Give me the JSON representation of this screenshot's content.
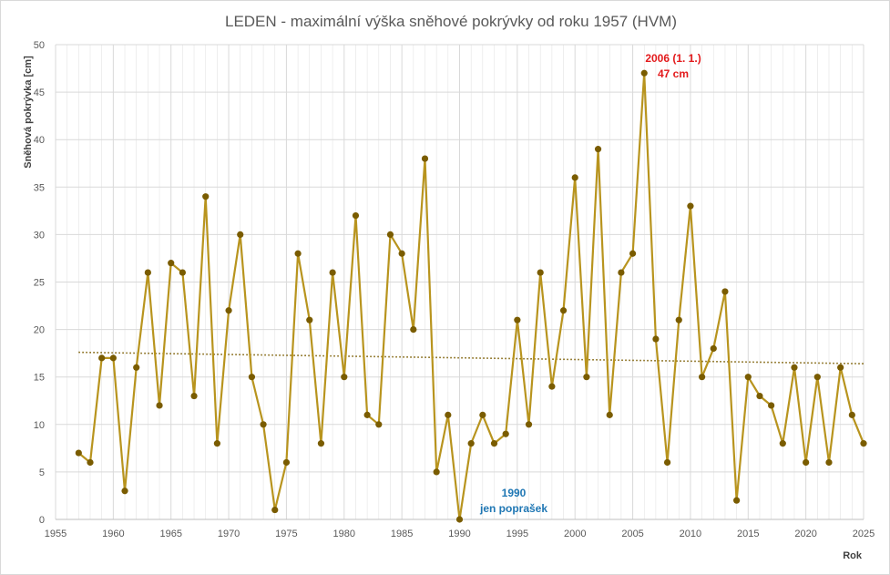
{
  "chart_data": {
    "type": "line",
    "title": "LEDEN - maximální výška sněhové pokrývky od roku 1957 (HVM)",
    "xlabel": "Rok",
    "ylabel": "Sněhová pokrývka [cm]",
    "xlim": [
      1955,
      2025
    ],
    "ylim": [
      0,
      50
    ],
    "x_ticks": [
      "1955",
      "1960",
      "1965",
      "1970",
      "1975",
      "1980",
      "1985",
      "1990",
      "1995",
      "2000",
      "2005",
      "2010",
      "2015",
      "2020",
      "2025"
    ],
    "y_ticks": [
      "0",
      "5",
      "10",
      "15",
      "20",
      "25",
      "30",
      "35",
      "40",
      "45",
      "50"
    ],
    "grid": true,
    "x": [
      1957,
      1958,
      1959,
      1960,
      1961,
      1962,
      1963,
      1964,
      1965,
      1966,
      1967,
      1968,
      1969,
      1970,
      1971,
      1972,
      1973,
      1974,
      1975,
      1976,
      1977,
      1978,
      1979,
      1980,
      1981,
      1982,
      1983,
      1984,
      1985,
      1986,
      1987,
      1988,
      1989,
      1990,
      1991,
      1992,
      1993,
      1994,
      1995,
      1996,
      1997,
      1998,
      1999,
      2000,
      2001,
      2002,
      2003,
      2004,
      2005,
      2006,
      2007,
      2008,
      2009,
      2010,
      2011,
      2012,
      2013,
      2014,
      2015,
      2016,
      2017,
      2018,
      2019,
      2020,
      2021,
      2022,
      2023,
      2024,
      2025
    ],
    "values": [
      7,
      6,
      17,
      17,
      3,
      16,
      26,
      12,
      27,
      26,
      13,
      34,
      8,
      22,
      30,
      15,
      10,
      1,
      6,
      28,
      21,
      8,
      26,
      15,
      32,
      11,
      10,
      30,
      28,
      20,
      38,
      5,
      11,
      0,
      8,
      11,
      8,
      9,
      21,
      10,
      26,
      14,
      22,
      36,
      15,
      39,
      11,
      26,
      28,
      47,
      19,
      6,
      21,
      33,
      15,
      18,
      24,
      2,
      15,
      13,
      12,
      8,
      16,
      6,
      15,
      6,
      16,
      11,
      8
    ],
    "trendline": {
      "type": "linear-dotted",
      "from": [
        1957,
        17.6
      ],
      "to": [
        2025,
        16.4
      ]
    },
    "colors": {
      "line": "#b8941e",
      "marker": "#7a5c00",
      "trend": "#7a5c00",
      "grid": "#d9d9d9"
    },
    "annotations": [
      {
        "key": "max",
        "lines": [
          "2006  (1. 1.)",
          "47 cm"
        ],
        "color": "#e31a1c"
      },
      {
        "key": "min",
        "lines": [
          "1990",
          "jen poprašek"
        ],
        "color": "#1f77b4"
      }
    ]
  }
}
